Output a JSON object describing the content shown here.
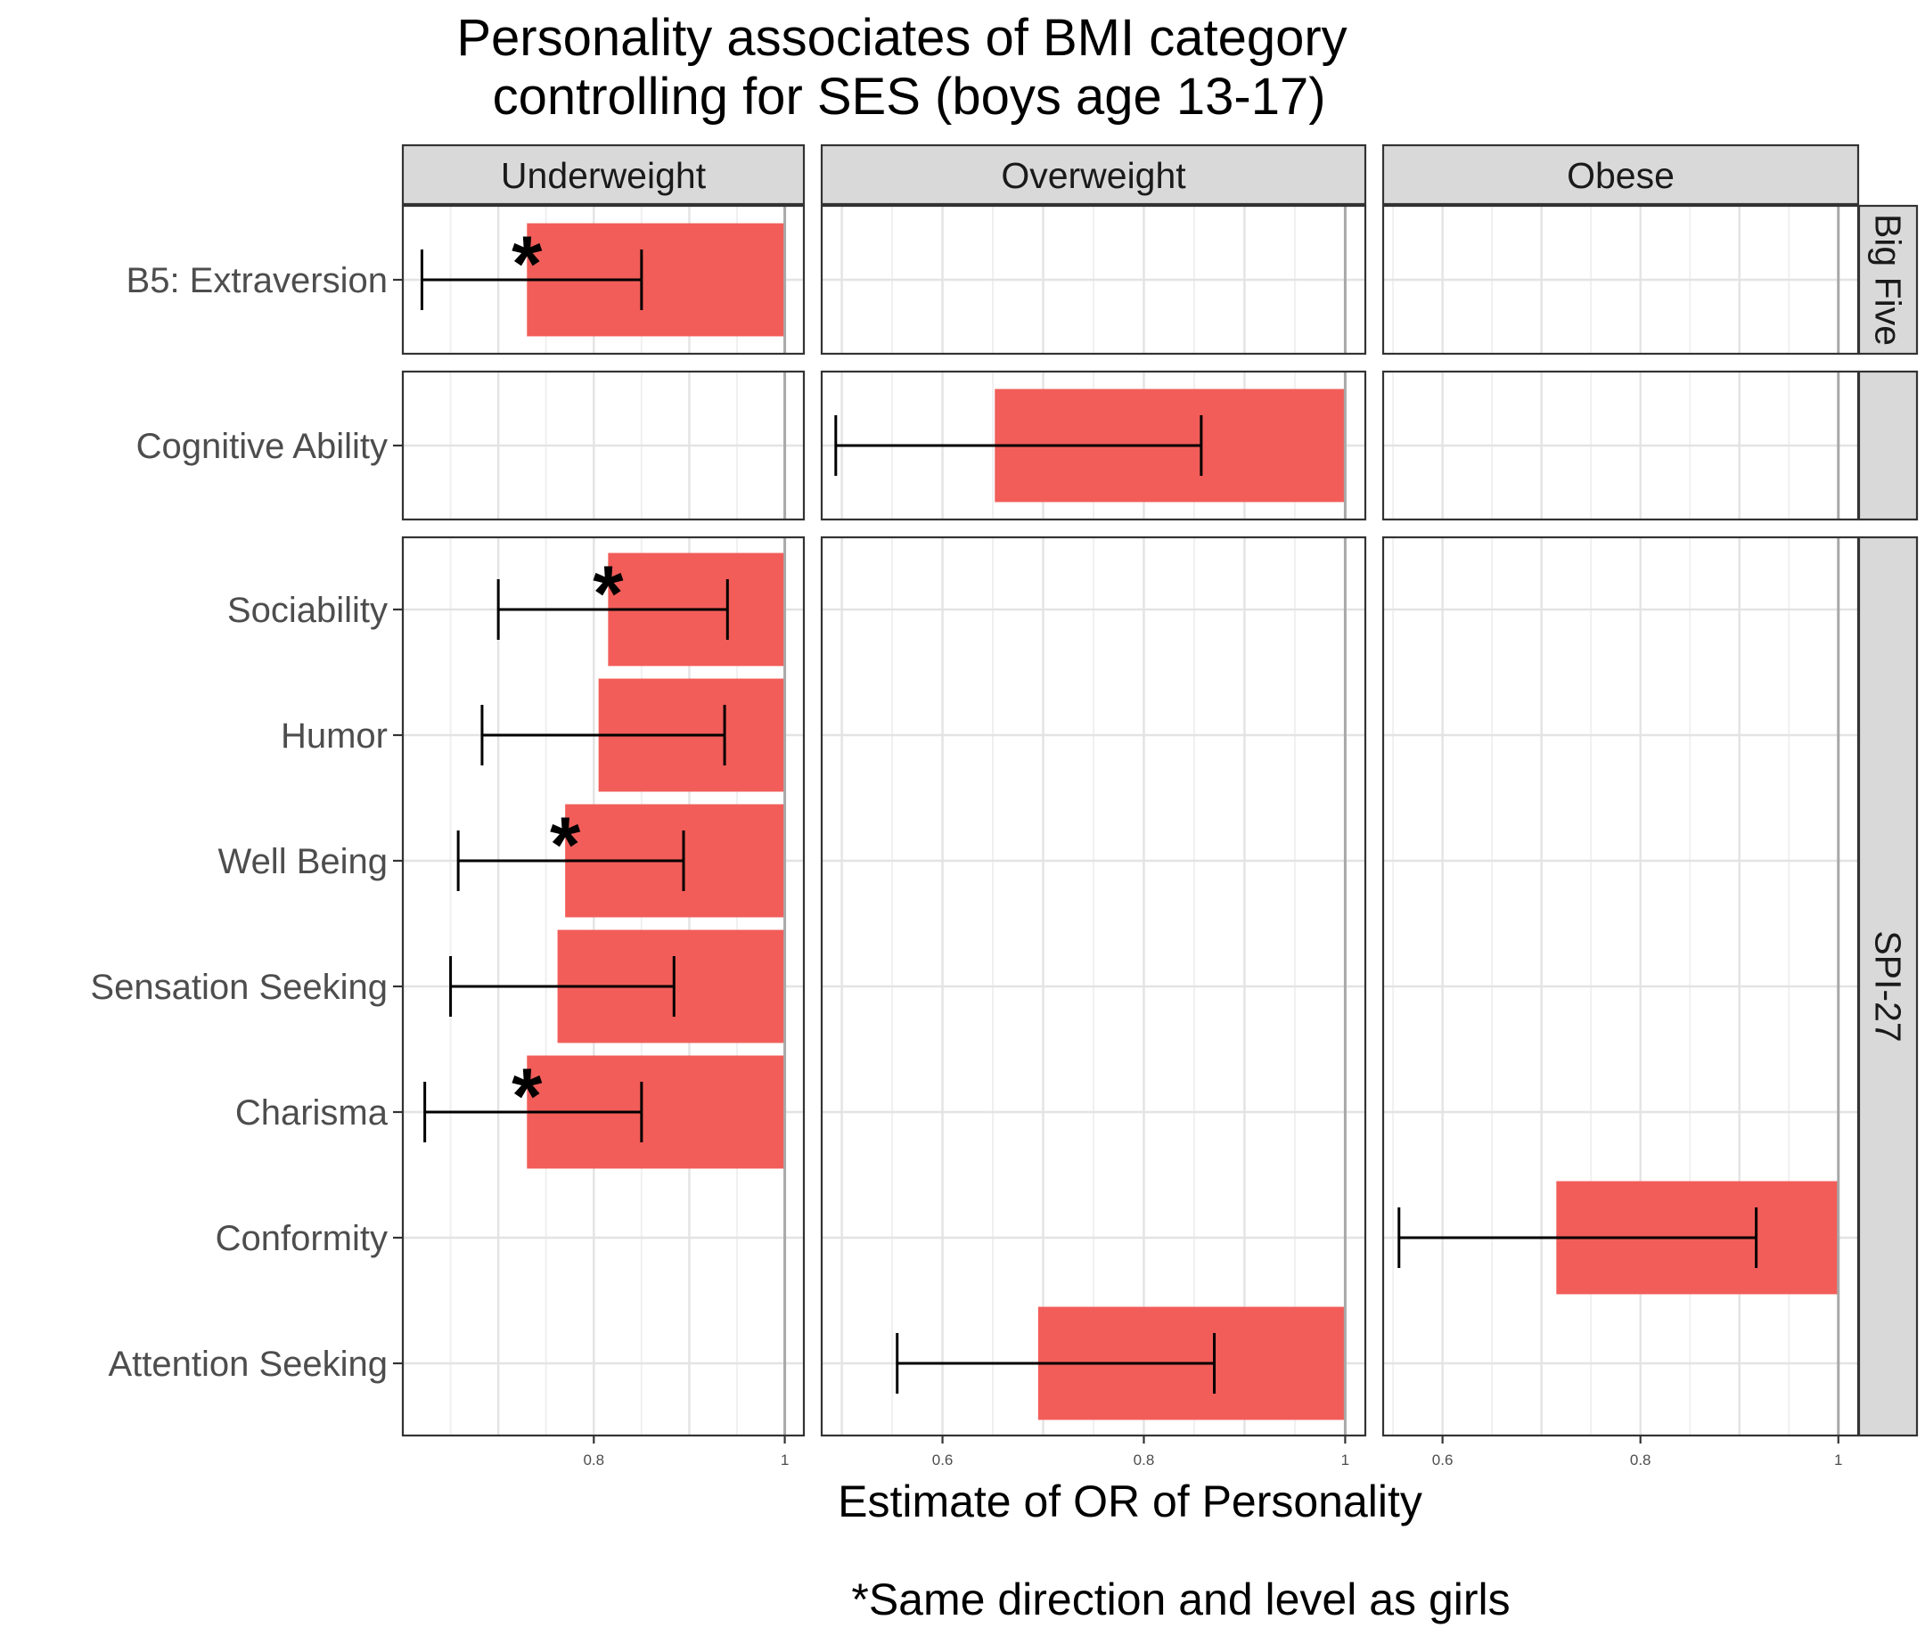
{
  "chart_data": {
    "type": "bar",
    "title": "Personality associates of BMI category\n controlling for SES (boys age 13-17)",
    "xlabel": "Estimate of OR of Personality",
    "caption": "*Same direction and level as girls",
    "bar_color": "#F25D59",
    "reference_line": 1,
    "columns": [
      {
        "label": "Underweight",
        "xlim": [
          0.6,
          1.02
        ],
        "ticks": [
          0.8,
          1
        ],
        "tick_labels": [
          "0.8",
          "1"
        ]
      },
      {
        "label": "Overweight",
        "xlim": [
          0.48,
          1.02
        ],
        "ticks": [
          0.6,
          0.8,
          1
        ],
        "tick_labels": [
          "0.6",
          "0.8",
          "1"
        ]
      },
      {
        "label": "Obese",
        "xlim": [
          0.54,
          1.02
        ],
        "ticks": [
          0.6,
          0.8,
          1
        ],
        "tick_labels": [
          "0.6",
          "0.8",
          "1"
        ]
      }
    ],
    "rows": [
      {
        "label": "Big Five",
        "traits": [
          "B5: Extraversion"
        ]
      },
      {
        "label": "",
        "traits": [
          "Cognitive Ability"
        ]
      },
      {
        "label": "SPI-27",
        "traits": [
          "Sociability",
          "Humor",
          "Well Being",
          "Sensation Seeking",
          "Charisma",
          "Conformity",
          "Attention Seeking"
        ]
      }
    ],
    "estimates": [
      {
        "column": "Underweight",
        "trait": "B5: Extraversion",
        "estimate": 0.73,
        "ci_low": 0.62,
        "ci_high": 0.85,
        "same_as_girls": true
      },
      {
        "column": "Underweight",
        "trait": "Sociability",
        "estimate": 0.815,
        "ci_low": 0.7,
        "ci_high": 0.94,
        "same_as_girls": true
      },
      {
        "column": "Underweight",
        "trait": "Humor",
        "estimate": 0.805,
        "ci_low": 0.683,
        "ci_high": 0.937,
        "same_as_girls": false
      },
      {
        "column": "Underweight",
        "trait": "Well Being",
        "estimate": 0.77,
        "ci_low": 0.658,
        "ci_high": 0.894,
        "same_as_girls": true
      },
      {
        "column": "Underweight",
        "trait": "Sensation Seeking",
        "estimate": 0.762,
        "ci_low": 0.65,
        "ci_high": 0.884,
        "same_as_girls": false
      },
      {
        "column": "Underweight",
        "trait": "Charisma",
        "estimate": 0.73,
        "ci_low": 0.623,
        "ci_high": 0.85,
        "same_as_girls": true
      },
      {
        "column": "Overweight",
        "trait": "Cognitive Ability",
        "estimate": 0.652,
        "ci_low": 0.494,
        "ci_high": 0.857,
        "same_as_girls": false
      },
      {
        "column": "Overweight",
        "trait": "Attention Seeking",
        "estimate": 0.695,
        "ci_low": 0.555,
        "ci_high": 0.87,
        "same_as_girls": false
      },
      {
        "column": "Obese",
        "trait": "Conformity",
        "estimate": 0.715,
        "ci_low": 0.556,
        "ci_high": 0.917,
        "same_as_girls": false
      }
    ]
  }
}
